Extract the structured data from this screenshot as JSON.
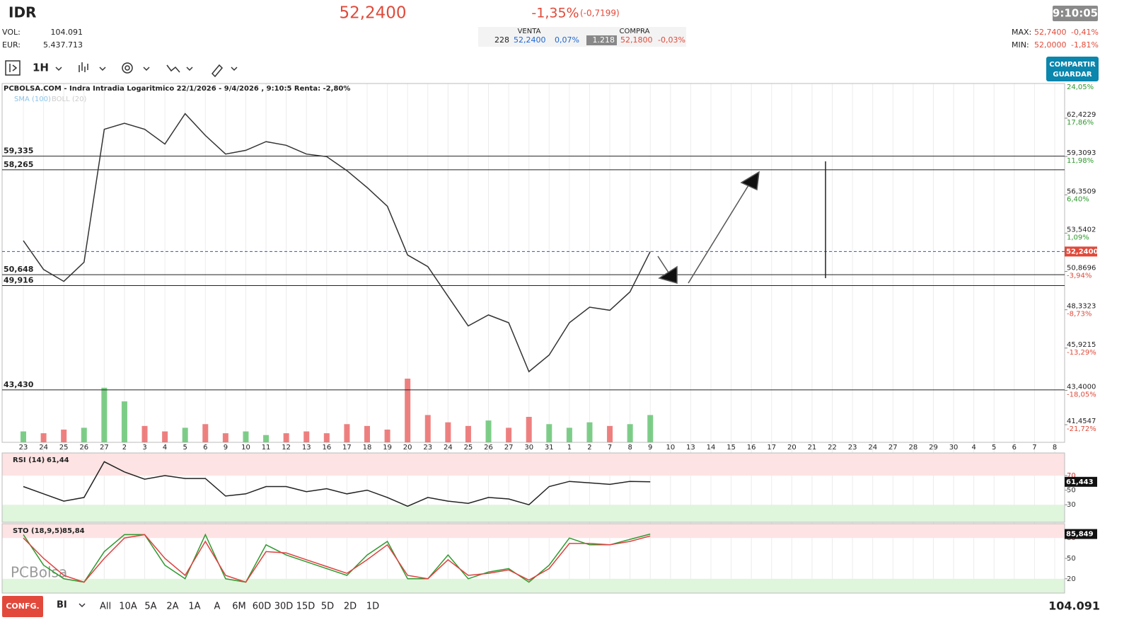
{
  "header": {
    "symbol": "IDR",
    "price": "52,2400",
    "change_pct": "-1,35%",
    "change_abs": "(-0,7199)",
    "time": "9:10:05",
    "vol_label": "VOL:",
    "vol": "104.091",
    "eur_label": "EUR:",
    "eur": "5.437.713",
    "venta": {
      "label": "VENTA",
      "qty": "228",
      "price": "52,2400",
      "pct": "0,07%"
    },
    "compra": {
      "label": "COMPRA",
      "qty": "1.218",
      "price": "52,1800",
      "pct": "-0,03%"
    },
    "max_label": "MAX:",
    "max": "52,7400",
    "max_pct": "-0,41%",
    "min_label": "MIN:",
    "min": "52,0000",
    "min_pct": "-1,81%"
  },
  "toolbar": {
    "interval": "1H",
    "share": "COMPARTIR",
    "save": "GUARDAR"
  },
  "chart_data": [
    {
      "type": "line",
      "title": "PCBOLSA.COM - Indra Intradia Logaritmico 22/1/2026 - 9/4/2026 , 9:10:5 Renta: -2,80%",
      "indicators": [
        "SMA (100)",
        "BOLL (20)"
      ],
      "watermark": "PCBolsa",
      "log": true,
      "color": "#333333",
      "categories": [
        "23",
        "24",
        "25",
        "26",
        "27",
        "2",
        "3",
        "4",
        "5",
        "6",
        "9",
        "10",
        "11",
        "12",
        "13",
        "16",
        "17",
        "18",
        "19",
        "20",
        "23",
        "24",
        "25",
        "26",
        "27",
        "30",
        "31",
        "1",
        "2",
        "7",
        "8",
        "9",
        "10",
        "13",
        "14",
        "15",
        "16",
        "17",
        "20",
        "21",
        "22",
        "23",
        "24",
        "27",
        "28",
        "29",
        "30",
        "4",
        "5",
        "6",
        "7",
        "8"
      ],
      "values": [
        53.0,
        51.0,
        50.2,
        51.5,
        61.5,
        62.0,
        61.5,
        60.3,
        62.8,
        61.0,
        59.5,
        59.8,
        60.5,
        60.2,
        59.5,
        59.3,
        58.2,
        56.9,
        55.5,
        52.0,
        51.2,
        49.2,
        47.3,
        48.0,
        47.5,
        44.5,
        45.5,
        47.5,
        48.5,
        48.3,
        49.5,
        52.24,
        null,
        null,
        null,
        null,
        null,
        null,
        null,
        null,
        null,
        null,
        null,
        null,
        null,
        null,
        null,
        null,
        null,
        null,
        null,
        null
      ],
      "volume": [
        12,
        10,
        14,
        16,
        60,
        45,
        18,
        12,
        16,
        20,
        10,
        12,
        8,
        10,
        12,
        10,
        20,
        18,
        14,
        70,
        30,
        22,
        18,
        24,
        16,
        28,
        20,
        16,
        22,
        18,
        20,
        30,
        null,
        null,
        null,
        null,
        null,
        null,
        null,
        null,
        null,
        null,
        null,
        null,
        null,
        null,
        null,
        null,
        null,
        null,
        null,
        null
      ],
      "ylim": [
        40.49,
        65.38
      ],
      "yticks": [
        {
          "value": 62.4229,
          "label": "62,4229"
        },
        {
          "value": 59.3093,
          "label": "59,3093"
        },
        {
          "value": 56.3509,
          "label": "56,3509"
        },
        {
          "value": 53.5402,
          "label": "53,5402"
        },
        {
          "value": 50.8696,
          "label": "50,8696"
        },
        {
          "value": 48.3323,
          "label": "48,3323"
        },
        {
          "value": 45.9215,
          "label": "45,9215"
        },
        {
          "value": 43.4,
          "label": "43,4000"
        },
        {
          "value": 41.4547,
          "label": "41,4547"
        }
      ],
      "ytick_pct": [
        "17,86%",
        "11,98%",
        "6,40%",
        "1,09%",
        "-3,94%",
        "-8,73%",
        "-13,29%",
        "-18,05%",
        "-21,72%"
      ],
      "top_pct": "24,05%",
      "levels": [
        {
          "value": 59.335,
          "label": "59,335"
        },
        {
          "value": 58.265,
          "label": "58,265"
        },
        {
          "value": 50.648,
          "label": "50,648"
        },
        {
          "value": 49.916,
          "label": "49,916"
        },
        {
          "value": 43.43,
          "label": "43,430"
        }
      ],
      "current_price": {
        "value": 52.24,
        "label": "52,2400"
      }
    },
    {
      "type": "line",
      "title": "RSI (14)",
      "last": "61,44",
      "badge": {
        "value": 61.443,
        "label": "61,443"
      },
      "color": "#222222",
      "values": [
        55,
        45,
        35,
        40,
        89,
        75,
        65,
        70,
        66,
        66,
        42,
        45,
        55,
        55,
        48,
        52,
        45,
        50,
        40,
        28,
        40,
        35,
        32,
        40,
        38,
        30,
        55,
        62,
        60,
        58,
        62,
        61.44,
        null,
        null,
        null,
        null,
        null,
        null,
        null,
        null,
        null,
        null,
        null,
        null,
        null,
        null,
        null,
        null,
        null,
        null,
        null,
        null
      ],
      "ylim": [
        6,
        101
      ],
      "yticks": [
        30,
        50,
        70
      ]
    },
    {
      "type": "line",
      "title": "STO (18,9,5)",
      "last": "85,84",
      "badge": {
        "value": 85.849,
        "label": "85,849"
      },
      "series": [
        {
          "color": "#2e9a2e",
          "values": [
            85,
            40,
            20,
            15,
            60,
            85,
            85,
            40,
            20,
            85,
            20,
            15,
            70,
            55,
            45,
            35,
            25,
            55,
            75,
            20,
            20,
            55,
            20,
            30,
            35,
            15,
            40,
            80,
            70,
            70,
            78,
            85.84,
            null,
            null,
            null,
            null,
            null,
            null,
            null,
            null,
            null,
            null,
            null,
            null,
            null,
            null,
            null,
            null,
            null,
            null,
            null,
            null
          ]
        },
        {
          "color": "#e04040",
          "values": [
            80,
            50,
            25,
            15,
            50,
            80,
            85,
            50,
            25,
            75,
            25,
            15,
            60,
            58,
            48,
            38,
            28,
            48,
            70,
            25,
            20,
            48,
            25,
            28,
            33,
            18,
            35,
            72,
            72,
            70,
            75,
            83,
            null,
            null,
            null,
            null,
            null,
            null,
            null,
            null,
            null,
            null,
            null,
            null,
            null,
            null,
            null,
            null,
            null,
            null,
            null,
            null
          ]
        }
      ],
      "ylim": [
        -1,
        101
      ],
      "yticks": [
        20,
        50,
        80
      ]
    }
  ],
  "footer": {
    "config": "CONFG.",
    "mode": "BI",
    "periods": [
      "All",
      "10A",
      "5A",
      "2A",
      "1A",
      "A",
      "6M",
      "60D",
      "30D",
      "15D",
      "5D",
      "2D",
      "1D"
    ],
    "volume": "104.091"
  }
}
